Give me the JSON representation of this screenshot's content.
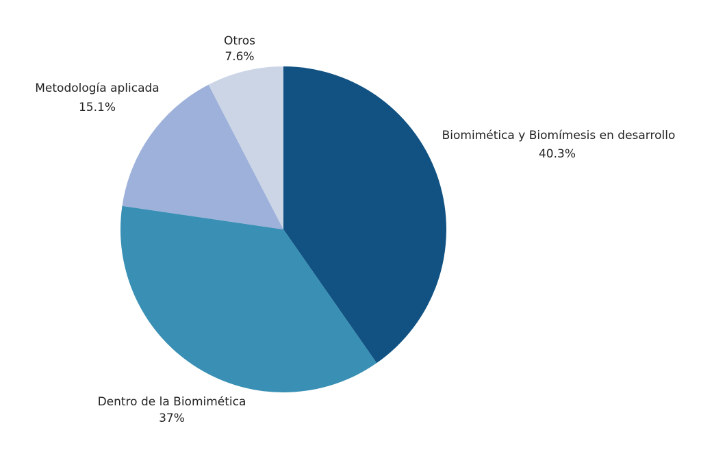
{
  "chart_data": {
    "type": "pie",
    "slices": [
      {
        "label": "Biomimética y Biomímesis en desarrollo",
        "value": 40.3,
        "display_value": "40.3%",
        "color": "#115283"
      },
      {
        "label": "Dentro de la Biomimética",
        "value": 37.0,
        "display_value": "37%",
        "color": "#3990b4"
      },
      {
        "label": "Metodología aplicada",
        "value": 15.1,
        "display_value": "15.1%",
        "color": "#9db1da"
      },
      {
        "label": "Otros",
        "value": 7.6,
        "display_value": "7.6%",
        "color": "#ccd5e6"
      }
    ]
  }
}
